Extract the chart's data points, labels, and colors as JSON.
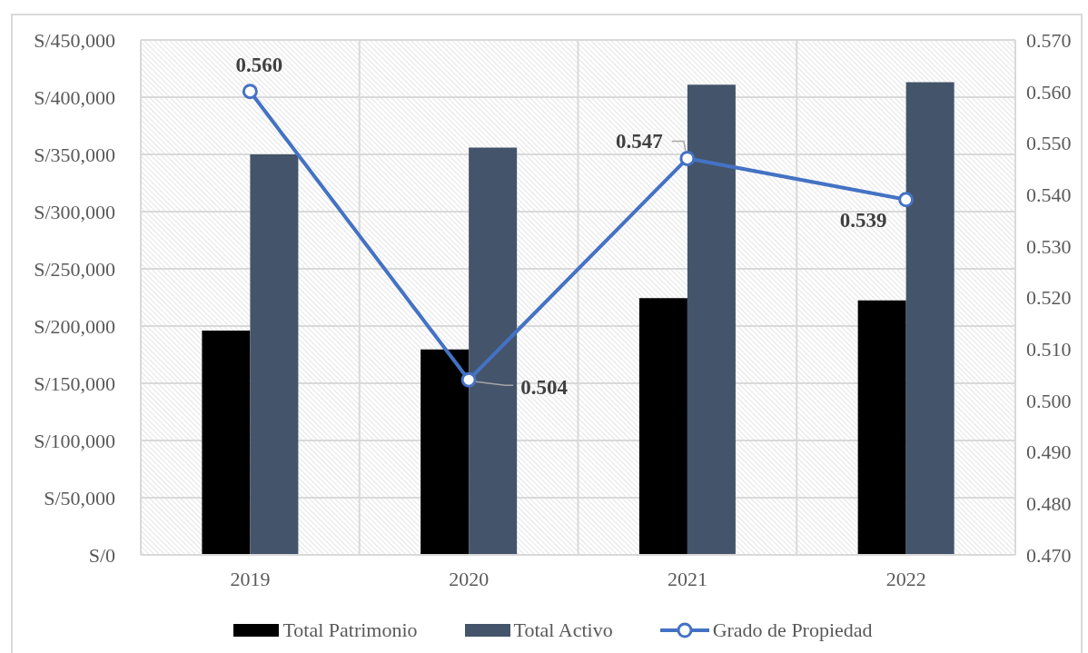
{
  "chart_data": {
    "type": "bar",
    "categories": [
      "2019",
      "2020",
      "2021",
      "2022"
    ],
    "series": [
      {
        "name": "Total Patrimonio",
        "color": "#000000",
        "values": [
          196000,
          179500,
          224500,
          222500
        ]
      },
      {
        "name": "Total Activo",
        "color": "#44546a",
        "values": [
          350000,
          356000,
          411000,
          413000
        ]
      },
      {
        "name": "Grado de Propiedad",
        "type": "line",
        "axis": "y2",
        "color": "#4472c4",
        "values": [
          0.56,
          0.504,
          0.547,
          0.539
        ],
        "value_labels": [
          "0.560",
          "0.504",
          "0.547",
          "0.539"
        ]
      }
    ],
    "ylim": [
      0,
      450000
    ],
    "yticks": [
      {
        "value": 0,
        "label": "S/0"
      },
      {
        "value": 50000,
        "label": "S/50,000"
      },
      {
        "value": 100000,
        "label": "S/100,000"
      },
      {
        "value": 150000,
        "label": "S/150,000"
      },
      {
        "value": 200000,
        "label": "S/200,000"
      },
      {
        "value": 250000,
        "label": "S/250,000"
      },
      {
        "value": 300000,
        "label": "S/300,000"
      },
      {
        "value": 350000,
        "label": "S/350,000"
      },
      {
        "value": 400000,
        "label": "S/400,000"
      },
      {
        "value": 450000,
        "label": "S/450,000"
      }
    ],
    "y2lim": [
      0.47,
      0.57
    ],
    "y2ticks": [
      {
        "value": 0.47,
        "label": "0.470"
      },
      {
        "value": 0.48,
        "label": "0.480"
      },
      {
        "value": 0.49,
        "label": "0.490"
      },
      {
        "value": 0.5,
        "label": "0.500"
      },
      {
        "value": 0.51,
        "label": "0.510"
      },
      {
        "value": 0.52,
        "label": "0.520"
      },
      {
        "value": 0.53,
        "label": "0.530"
      },
      {
        "value": 0.54,
        "label": "0.540"
      },
      {
        "value": 0.55,
        "label": "0.550"
      },
      {
        "value": 0.56,
        "label": "0.560"
      },
      {
        "value": 0.57,
        "label": "0.570"
      }
    ],
    "grid": true,
    "legend": "bottom",
    "marker": "circle"
  }
}
